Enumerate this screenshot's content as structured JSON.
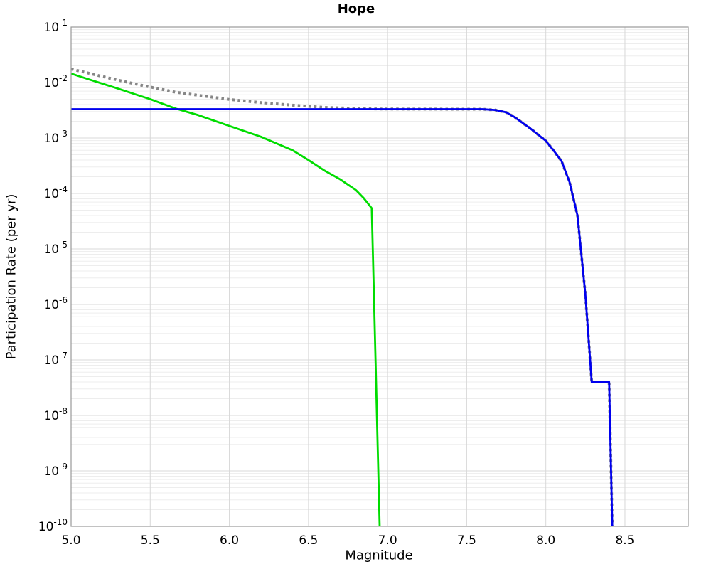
{
  "chart_data": {
    "type": "line",
    "title": "Hope",
    "xlabel": "Magnitude",
    "ylabel": "Participation Rate (per yr)",
    "xlim": [
      5.0,
      8.9
    ],
    "ylim": [
      1e-10,
      0.1
    ],
    "y_scale": "log",
    "grid": true,
    "legend": "none",
    "x_ticks": [
      5.0,
      5.5,
      6.0,
      6.5,
      7.0,
      7.5,
      8.0,
      8.5
    ],
    "y_tick_exponents": [
      -1,
      -2,
      -3,
      -4,
      -5,
      -6,
      -7,
      -8,
      -9,
      -10
    ],
    "colors": {
      "dotted_gray": "#868686",
      "green": "#00dc00",
      "blue": "#0000ee",
      "grid_major": "#d8d8d8",
      "grid_minor": "#ededed",
      "spine": "#999999"
    },
    "series": [
      {
        "name": "dotted-gray-total",
        "color": "#868686",
        "style": "dotted",
        "width": 4,
        "points": [
          [
            5.0,
            0.0175
          ],
          [
            5.1,
            0.015
          ],
          [
            5.2,
            0.0128
          ],
          [
            5.3,
            0.011
          ],
          [
            5.4,
            0.0095
          ],
          [
            5.5,
            0.0083
          ],
          [
            5.66,
            0.0067
          ],
          [
            5.8,
            0.0059
          ],
          [
            6.0,
            0.00495
          ],
          [
            6.2,
            0.00435
          ],
          [
            6.4,
            0.0039
          ],
          [
            6.6,
            0.00356
          ],
          [
            6.8,
            0.00341
          ],
          [
            6.95,
            0.00333
          ],
          [
            7.6,
            0.0033
          ],
          [
            7.68,
            0.0032
          ],
          [
            7.75,
            0.0029
          ],
          [
            7.8,
            0.0024
          ],
          [
            7.9,
            0.0015
          ],
          [
            8.0,
            0.00089
          ],
          [
            8.05,
            0.00059
          ],
          [
            8.1,
            0.00038
          ],
          [
            8.15,
            0.00016
          ],
          [
            8.2,
            4e-05
          ],
          [
            8.25,
            1.5e-06
          ],
          [
            8.29,
            4e-08
          ],
          [
            8.4,
            4e-08
          ],
          [
            8.42,
            1e-10
          ]
        ]
      },
      {
        "name": "green-solid",
        "color": "#00dc00",
        "style": "solid",
        "width": 2.8,
        "points": [
          [
            5.0,
            0.0145
          ],
          [
            5.1,
            0.0117
          ],
          [
            5.2,
            0.0095
          ],
          [
            5.3,
            0.0077
          ],
          [
            5.4,
            0.0062
          ],
          [
            5.5,
            0.005
          ],
          [
            5.66,
            0.0034
          ],
          [
            5.8,
            0.0026
          ],
          [
            6.0,
            0.00165
          ],
          [
            6.2,
            0.00105
          ],
          [
            6.4,
            0.0006
          ],
          [
            6.5,
            0.0004
          ],
          [
            6.6,
            0.00026
          ],
          [
            6.7,
            0.00018
          ],
          [
            6.8,
            0.000115
          ],
          [
            6.85,
            8.2e-05
          ],
          [
            6.9,
            5.4e-05
          ],
          [
            6.95,
            1e-10
          ]
        ]
      },
      {
        "name": "blue-solid",
        "color": "#0000ee",
        "style": "solid",
        "width": 2.8,
        "points": [
          [
            5.0,
            0.0033
          ],
          [
            7.6,
            0.0033
          ],
          [
            7.68,
            0.0032
          ],
          [
            7.75,
            0.0029
          ],
          [
            7.8,
            0.0024
          ],
          [
            7.9,
            0.0015
          ],
          [
            8.0,
            0.00089
          ],
          [
            8.05,
            0.00059
          ],
          [
            8.1,
            0.00038
          ],
          [
            8.15,
            0.00016
          ],
          [
            8.2,
            4e-05
          ],
          [
            8.25,
            1.5e-06
          ],
          [
            8.29,
            4e-08
          ],
          [
            8.4,
            4e-08
          ],
          [
            8.42,
            1e-10
          ]
        ]
      }
    ]
  }
}
